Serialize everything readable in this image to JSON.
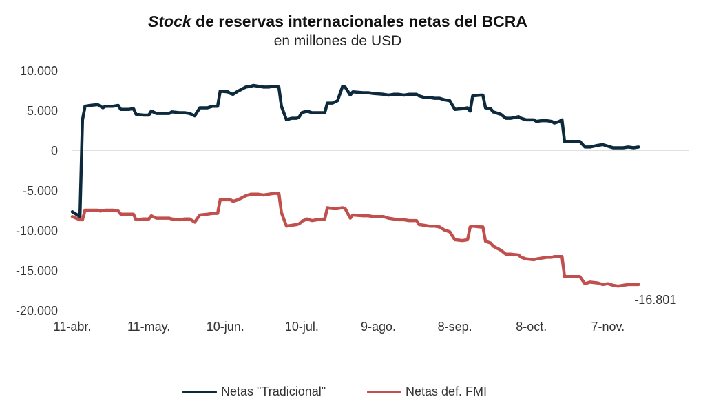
{
  "chart_data": {
    "type": "line",
    "title": {
      "italic": "Stock",
      "rest": " de reservas internacionales netas del BCRA"
    },
    "subtitle": "en millones de USD",
    "xlabel": "",
    "ylabel": "",
    "ylim": [
      -20000,
      10000
    ],
    "yticks": [
      10000,
      5000,
      0,
      -5000,
      -10000,
      -15000,
      -20000
    ],
    "ytick_labels": [
      "10.000",
      "5.000",
      "0",
      "-5.000",
      "-10.000",
      "-15.000",
      "-20.000"
    ],
    "xlim": [
      0,
      223
    ],
    "xticks": [
      0,
      30,
      60,
      90,
      120,
      150,
      180,
      210
    ],
    "xtick_labels": [
      "11-abr.",
      "11-may.",
      "10-jun.",
      "10-jul.",
      "9-ago.",
      "8-sep.",
      "8-oct.",
      "7-nov."
    ],
    "grid": false,
    "legend_position": "bottom",
    "series": [
      {
        "name": "Netas \"Tradicional\"",
        "color": "#0d2a3d",
        "points": [
          [
            0,
            -7700
          ],
          [
            3,
            -8300
          ],
          [
            4,
            3800
          ],
          [
            5,
            5500
          ],
          [
            7,
            5600
          ],
          [
            10,
            5700
          ],
          [
            12,
            5300
          ],
          [
            13,
            5500
          ],
          [
            16,
            5500
          ],
          [
            18,
            5600
          ],
          [
            19,
            5100
          ],
          [
            22,
            5100
          ],
          [
            24,
            5200
          ],
          [
            25,
            4500
          ],
          [
            28,
            4400
          ],
          [
            30,
            4400
          ],
          [
            31,
            4900
          ],
          [
            33,
            4600
          ],
          [
            36,
            4600
          ],
          [
            38,
            4600
          ],
          [
            39,
            4800
          ],
          [
            42,
            4700
          ],
          [
            44,
            4700
          ],
          [
            46,
            4600
          ],
          [
            48,
            4300
          ],
          [
            50,
            5300
          ],
          [
            53,
            5300
          ],
          [
            55,
            5500
          ],
          [
            57,
            5500
          ],
          [
            58,
            7400
          ],
          [
            61,
            7300
          ],
          [
            62,
            7100
          ],
          [
            63,
            7000
          ],
          [
            65,
            7400
          ],
          [
            68,
            7900
          ],
          [
            70,
            8000
          ],
          [
            71,
            8100
          ],
          [
            73,
            8000
          ],
          [
            75,
            7900
          ],
          [
            77,
            7900
          ],
          [
            79,
            8000
          ],
          [
            81,
            7900
          ],
          [
            82,
            5500
          ],
          [
            84,
            3800
          ],
          [
            86,
            4000
          ],
          [
            88,
            4000
          ],
          [
            89,
            4200
          ],
          [
            90,
            4700
          ],
          [
            92,
            4900
          ],
          [
            94,
            4700
          ],
          [
            96,
            4700
          ],
          [
            99,
            4700
          ],
          [
            100,
            5900
          ],
          [
            102,
            5900
          ],
          [
            104,
            6200
          ],
          [
            106,
            8000
          ],
          [
            107,
            7900
          ],
          [
            109,
            6900
          ],
          [
            110,
            7300
          ],
          [
            114,
            7200
          ],
          [
            116,
            7200
          ],
          [
            118,
            7100
          ],
          [
            122,
            7000
          ],
          [
            124,
            6900
          ],
          [
            126,
            7000
          ],
          [
            128,
            7000
          ],
          [
            130,
            6900
          ],
          [
            132,
            7000
          ],
          [
            135,
            7000
          ],
          [
            136,
            6800
          ],
          [
            138,
            6600
          ],
          [
            140,
            6600
          ],
          [
            142,
            6500
          ],
          [
            144,
            6500
          ],
          [
            146,
            6300
          ],
          [
            148,
            6200
          ],
          [
            150,
            5100
          ],
          [
            153,
            5200
          ],
          [
            155,
            5300
          ],
          [
            156,
            4900
          ],
          [
            157,
            6800
          ],
          [
            160,
            6900
          ],
          [
            161,
            6900
          ],
          [
            162,
            5300
          ],
          [
            164,
            5200
          ],
          [
            165,
            4800
          ],
          [
            168,
            4500
          ],
          [
            170,
            4000
          ],
          [
            172,
            4000
          ],
          [
            175,
            4200
          ],
          [
            176,
            4000
          ],
          [
            178,
            3800
          ],
          [
            181,
            3800
          ],
          [
            182,
            3600
          ],
          [
            184,
            3700
          ],
          [
            186,
            3700
          ],
          [
            188,
            3600
          ],
          [
            189,
            3400
          ],
          [
            191,
            3600
          ],
          [
            192,
            3800
          ],
          [
            193,
            1100
          ],
          [
            199,
            1100
          ],
          [
            201,
            400
          ],
          [
            203,
            400
          ],
          [
            206,
            600
          ],
          [
            208,
            700
          ],
          [
            210,
            500
          ],
          [
            212,
            300
          ],
          [
            214,
            300
          ],
          [
            216,
            300
          ],
          [
            218,
            400
          ],
          [
            220,
            300
          ],
          [
            222,
            400
          ]
        ]
      },
      {
        "name": "Netas def. FMI",
        "color": "#c0504d",
        "points": [
          [
            0,
            -8300
          ],
          [
            3,
            -8700
          ],
          [
            4,
            -8700
          ],
          [
            5,
            -7500
          ],
          [
            7,
            -7500
          ],
          [
            10,
            -7500
          ],
          [
            11,
            -7600
          ],
          [
            13,
            -7500
          ],
          [
            16,
            -7500
          ],
          [
            18,
            -7600
          ],
          [
            19,
            -8000
          ],
          [
            22,
            -8000
          ],
          [
            24,
            -8000
          ],
          [
            25,
            -8700
          ],
          [
            28,
            -8600
          ],
          [
            30,
            -8600
          ],
          [
            31,
            -8200
          ],
          [
            33,
            -8500
          ],
          [
            36,
            -8500
          ],
          [
            38,
            -8500
          ],
          [
            39,
            -8600
          ],
          [
            42,
            -8700
          ],
          [
            44,
            -8600
          ],
          [
            46,
            -8600
          ],
          [
            48,
            -9000
          ],
          [
            50,
            -8100
          ],
          [
            53,
            -8000
          ],
          [
            55,
            -7900
          ],
          [
            57,
            -7900
          ],
          [
            58,
            -6200
          ],
          [
            61,
            -6200
          ],
          [
            62,
            -6200
          ],
          [
            63,
            -6400
          ],
          [
            65,
            -6200
          ],
          [
            68,
            -5700
          ],
          [
            70,
            -5500
          ],
          [
            71,
            -5500
          ],
          [
            73,
            -5500
          ],
          [
            75,
            -5600
          ],
          [
            77,
            -5500
          ],
          [
            79,
            -5400
          ],
          [
            81,
            -5400
          ],
          [
            82,
            -7800
          ],
          [
            84,
            -9500
          ],
          [
            86,
            -9400
          ],
          [
            88,
            -9300
          ],
          [
            89,
            -9200
          ],
          [
            90,
            -8900
          ],
          [
            92,
            -8600
          ],
          [
            94,
            -8800
          ],
          [
            96,
            -8700
          ],
          [
            99,
            -8600
          ],
          [
            100,
            -7200
          ],
          [
            102,
            -7300
          ],
          [
            104,
            -7300
          ],
          [
            106,
            -7200
          ],
          [
            107,
            -7300
          ],
          [
            109,
            -8500
          ],
          [
            110,
            -8100
          ],
          [
            114,
            -8200
          ],
          [
            116,
            -8200
          ],
          [
            118,
            -8300
          ],
          [
            122,
            -8300
          ],
          [
            124,
            -8500
          ],
          [
            126,
            -8600
          ],
          [
            128,
            -8700
          ],
          [
            130,
            -8700
          ],
          [
            132,
            -8800
          ],
          [
            135,
            -8800
          ],
          [
            136,
            -9300
          ],
          [
            138,
            -9400
          ],
          [
            140,
            -9500
          ],
          [
            142,
            -9500
          ],
          [
            144,
            -9600
          ],
          [
            146,
            -10000
          ],
          [
            148,
            -10200
          ],
          [
            150,
            -11200
          ],
          [
            153,
            -11300
          ],
          [
            155,
            -11200
          ],
          [
            156,
            -9600
          ],
          [
            157,
            -9500
          ],
          [
            160,
            -9600
          ],
          [
            161,
            -9600
          ],
          [
            162,
            -11400
          ],
          [
            164,
            -11600
          ],
          [
            165,
            -12000
          ],
          [
            168,
            -12500
          ],
          [
            170,
            -13000
          ],
          [
            172,
            -13000
          ],
          [
            175,
            -13100
          ],
          [
            176,
            -13400
          ],
          [
            178,
            -13600
          ],
          [
            181,
            -13700
          ],
          [
            182,
            -13600
          ],
          [
            184,
            -13500
          ],
          [
            186,
            -13400
          ],
          [
            188,
            -13400
          ],
          [
            189,
            -13300
          ],
          [
            191,
            -13300
          ],
          [
            192,
            -13300
          ],
          [
            193,
            -15800
          ],
          [
            199,
            -15800
          ],
          [
            201,
            -16700
          ],
          [
            203,
            -16500
          ],
          [
            206,
            -16600
          ],
          [
            208,
            -16800
          ],
          [
            210,
            -16700
          ],
          [
            212,
            -16900
          ],
          [
            214,
            -17000
          ],
          [
            216,
            -16900
          ],
          [
            218,
            -16800
          ],
          [
            220,
            -16800
          ],
          [
            222,
            -16801
          ]
        ]
      }
    ],
    "annotations": [
      {
        "text": "-16.801",
        "series": 1,
        "point": "last"
      }
    ]
  }
}
